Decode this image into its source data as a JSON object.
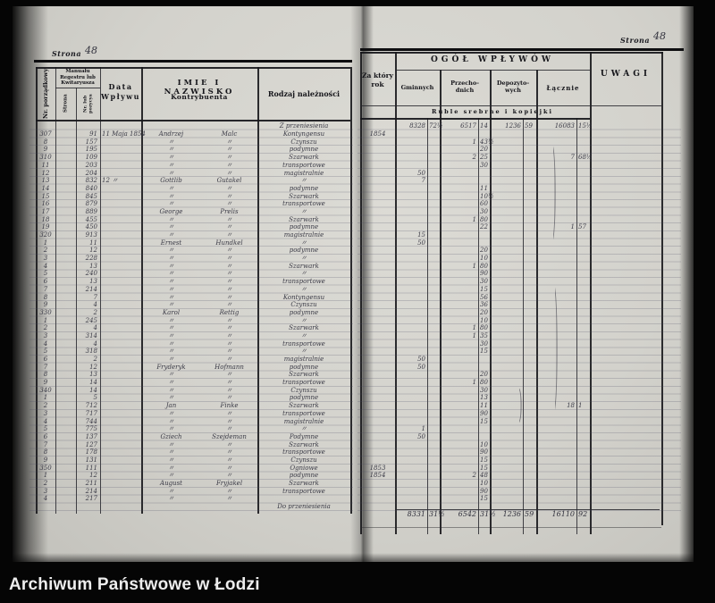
{
  "caption": "Archiwum Państwowe w Łodzi",
  "page_labels": {
    "left_word": "Strona",
    "left_number": "48",
    "right_word": "Strona",
    "right_number": "48"
  },
  "left_table": {
    "header": {
      "nr_porzadkowy": "Nr. porządkowy",
      "manual": "Manuału\nRegestru lub\nKwitaryusza",
      "strona": "Strona",
      "nr_pozycya": "Nr. lub pozycya",
      "data_wplywu": "Data\nWpływu",
      "imie": "IMIE I NAZWISKO",
      "kontrybuenta": "Kontrybuenta",
      "rodzaj": "Rodzaj należności"
    },
    "rows": [
      [
        "",
        "",
        "",
        "",
        "",
        "",
        "Z przeniesienia"
      ],
      [
        "307",
        "",
        "91",
        "11 Maja 1854",
        "Andrzej",
        "Malc",
        "Kontyngensu"
      ],
      [
        "8",
        "",
        "157",
        "",
        "〃",
        "〃",
        "Czynszu"
      ],
      [
        "9",
        "",
        "195",
        "",
        "〃",
        "〃",
        "podymne"
      ],
      [
        "310",
        "",
        "109",
        "",
        "〃",
        "〃",
        "Szarwark"
      ],
      [
        "11",
        "",
        "203",
        "",
        "〃",
        "〃",
        "transportowe"
      ],
      [
        "12",
        "",
        "204",
        "",
        "〃",
        "〃",
        "magistralnie"
      ],
      [
        "13",
        "",
        "832",
        "12 〃",
        "Gottlib",
        "Gutakel",
        "〃"
      ],
      [
        "14",
        "",
        "840",
        "",
        "〃",
        "〃",
        "podymne"
      ],
      [
        "15",
        "",
        "845",
        "",
        "〃",
        "〃",
        "Szarwark"
      ],
      [
        "16",
        "",
        "879",
        "",
        "〃",
        "〃",
        "transportowe"
      ],
      [
        "17",
        "",
        "889",
        "",
        "George",
        "Prelis",
        "〃"
      ],
      [
        "18",
        "",
        "455",
        "",
        "〃",
        "〃",
        "Szarwark"
      ],
      [
        "19",
        "",
        "450",
        "",
        "〃",
        "〃",
        "podymne"
      ],
      [
        "320",
        "",
        "913",
        "",
        "〃",
        "〃",
        "magistralnie"
      ],
      [
        "1",
        "",
        "11",
        "",
        "Ernest",
        "Hundkel",
        "〃"
      ],
      [
        "2",
        "",
        "12",
        "",
        "〃",
        "〃",
        "podymne"
      ],
      [
        "3",
        "",
        "228",
        "",
        "〃",
        "〃",
        "〃"
      ],
      [
        "4",
        "",
        "13",
        "",
        "〃",
        "〃",
        "Szarwark"
      ],
      [
        "5",
        "",
        "240",
        "",
        "〃",
        "〃",
        "〃"
      ],
      [
        "6",
        "",
        "13",
        "",
        "〃",
        "〃",
        "transportowe"
      ],
      [
        "7",
        "",
        "214",
        "",
        "〃",
        "〃",
        "〃"
      ],
      [
        "8",
        "",
        "7",
        "",
        "〃",
        "〃",
        "Kontyngensu"
      ],
      [
        "9",
        "",
        "4",
        "",
        "〃",
        "〃",
        "Czynszu"
      ],
      [
        "330",
        "",
        "2",
        "",
        "Karol",
        "Rettig",
        "podymne"
      ],
      [
        "1",
        "",
        "245",
        "",
        "〃",
        "〃",
        "〃"
      ],
      [
        "2",
        "",
        "4",
        "",
        "〃",
        "〃",
        "Szarwark"
      ],
      [
        "3",
        "",
        "314",
        "",
        "〃",
        "〃",
        "〃"
      ],
      [
        "4",
        "",
        "4",
        "",
        "〃",
        "〃",
        "transportowe"
      ],
      [
        "5",
        "",
        "318",
        "",
        "〃",
        "〃",
        "〃"
      ],
      [
        "6",
        "",
        "2",
        "",
        "〃",
        "〃",
        "magistralnie"
      ],
      [
        "7",
        "",
        "12",
        "",
        "Fryderyk",
        "Hofmann",
        "podymne"
      ],
      [
        "8",
        "",
        "13",
        "",
        "〃",
        "〃",
        "Szarwark"
      ],
      [
        "9",
        "",
        "14",
        "",
        "〃",
        "〃",
        "transportowe"
      ],
      [
        "340",
        "",
        "14",
        "",
        "〃",
        "〃",
        "Czynszu"
      ],
      [
        "1",
        "",
        "5",
        "",
        "〃",
        "〃",
        "podymne"
      ],
      [
        "2",
        "",
        "712",
        "",
        "Jan",
        "Finke",
        "Szarwark"
      ],
      [
        "3",
        "",
        "717",
        "",
        "〃",
        "〃",
        "transportowe"
      ],
      [
        "4",
        "",
        "744",
        "",
        "〃",
        "〃",
        "magistralnie"
      ],
      [
        "5",
        "",
        "775",
        "",
        "〃",
        "〃",
        "〃"
      ],
      [
        "6",
        "",
        "137",
        "",
        "Gziech",
        "Szejdeman",
        "Podymne"
      ],
      [
        "7",
        "",
        "127",
        "",
        "〃",
        "〃",
        "Szarwark"
      ],
      [
        "8",
        "",
        "178",
        "",
        "〃",
        "〃",
        "transportowe"
      ],
      [
        "9",
        "",
        "131",
        "",
        "〃",
        "〃",
        "Czynszu"
      ],
      [
        "350",
        "",
        "111",
        "",
        "〃",
        "〃",
        "Ogniowe"
      ],
      [
        "1",
        "",
        "12",
        "",
        "〃",
        "〃",
        "podymne"
      ],
      [
        "2",
        "",
        "211",
        "",
        "August",
        "Fryjakel",
        "Szarwark"
      ],
      [
        "3",
        "",
        "214",
        "",
        "〃",
        "〃",
        "transportowe"
      ],
      [
        "4",
        "",
        "217",
        "",
        "〃",
        "〃",
        ""
      ],
      [
        "",
        "",
        "",
        "",
        "",
        "",
        "Do przeniesienia"
      ]
    ]
  },
  "right_table": {
    "header": {
      "za_ktory_rok": "Za który\nrok",
      "ogol": "OGÓŁ WPŁYWÓW",
      "gminnych": "Gminnych",
      "przechodnich": "Przecho-\ndnich",
      "depozytowych": "Depozyto-\nwych",
      "lacznie": "Łącznie",
      "uwagi": "UWAGI",
      "ruble": "Ruble srebrne i kopiejki"
    },
    "rows": [
      [
        "",
        "8328",
        "72½",
        "6517",
        "14",
        "1236",
        "59",
        "16083",
        "15½",
        ""
      ],
      [
        "1854",
        "",
        "",
        "",
        "",
        "",
        "",
        "",
        "",
        ""
      ],
      [
        "",
        "",
        "",
        "1",
        "43½",
        "",
        "",
        "",
        "",
        ""
      ],
      [
        "",
        "",
        "",
        "",
        "20",
        "",
        "",
        "",
        "",
        ""
      ],
      [
        "",
        "",
        "",
        "2",
        "25",
        "",
        "",
        "7",
        "68½",
        ""
      ],
      [
        "",
        "",
        "",
        "",
        "30",
        "",
        "",
        "",
        "",
        ""
      ],
      [
        "",
        "50",
        "",
        "",
        "",
        "",
        "",
        "",
        "",
        ""
      ],
      [
        "",
        "7",
        "",
        "",
        "",
        "",
        "",
        "",
        "",
        ""
      ],
      [
        "",
        "",
        "",
        "",
        "11",
        "",
        "",
        "",
        "",
        ""
      ],
      [
        "",
        "",
        "",
        "",
        "10½",
        "",
        "",
        "",
        "",
        ""
      ],
      [
        "",
        "",
        "",
        "",
        "60",
        "",
        "",
        "",
        "",
        ""
      ],
      [
        "",
        "",
        "",
        "",
        "30",
        "",
        "",
        "",
        "",
        ""
      ],
      [
        "",
        "",
        "",
        "1",
        "80",
        "",
        "",
        "",
        "",
        ""
      ],
      [
        "",
        "",
        "",
        "",
        "22",
        "",
        "",
        "1",
        "57",
        ""
      ],
      [
        "",
        "15",
        "",
        "",
        "",
        "",
        "",
        "",
        "",
        ""
      ],
      [
        "",
        "50",
        "",
        "",
        "",
        "",
        "",
        "",
        "",
        ""
      ],
      [
        "",
        "",
        "",
        "",
        "20",
        "",
        "",
        "",
        "",
        ""
      ],
      [
        "",
        "",
        "",
        "",
        "10",
        "",
        "",
        "",
        "",
        ""
      ],
      [
        "",
        "",
        "",
        "1",
        "80",
        "",
        "",
        "",
        "",
        ""
      ],
      [
        "",
        "",
        "",
        "",
        "90",
        "",
        "",
        "",
        "",
        ""
      ],
      [
        "",
        "",
        "",
        "",
        "30",
        "",
        "",
        "",
        "",
        ""
      ],
      [
        "",
        "",
        "",
        "",
        "15",
        "",
        "",
        "",
        "",
        ""
      ],
      [
        "",
        "",
        "",
        "",
        "56",
        "",
        "",
        "",
        "",
        ""
      ],
      [
        "",
        "",
        "",
        "",
        "36",
        "",
        "",
        "",
        "",
        ""
      ],
      [
        "",
        "",
        "",
        "",
        "20",
        "",
        "",
        "",
        "",
        ""
      ],
      [
        "",
        "",
        "",
        "",
        "10",
        "",
        "",
        "",
        "",
        ""
      ],
      [
        "",
        "",
        "",
        "1",
        "80",
        "",
        "",
        "",
        "",
        ""
      ],
      [
        "",
        "",
        "",
        "1",
        "35",
        "",
        "",
        "",
        "",
        ""
      ],
      [
        "",
        "",
        "",
        "",
        "30",
        "",
        "",
        "",
        "",
        ""
      ],
      [
        "",
        "",
        "",
        "",
        "15",
        "",
        "",
        "",
        "",
        ""
      ],
      [
        "",
        "50",
        "",
        "",
        "",
        "",
        "",
        "",
        "",
        ""
      ],
      [
        "",
        "50",
        "",
        "",
        "",
        "",
        "",
        "",
        "",
        ""
      ],
      [
        "",
        "",
        "",
        "",
        "20",
        "",
        "",
        "",
        "",
        ""
      ],
      [
        "",
        "",
        "",
        "1",
        "80",
        "",
        "",
        "",
        "",
        ""
      ],
      [
        "",
        "",
        "",
        "",
        "30",
        "",
        "",
        "",
        "",
        ""
      ],
      [
        "",
        "",
        "",
        "",
        "13",
        "",
        "",
        "",
        "",
        ""
      ],
      [
        "",
        "",
        "",
        "",
        "11",
        "",
        "",
        "18",
        "1",
        ""
      ],
      [
        "",
        "",
        "",
        "",
        "90",
        "",
        "",
        "",
        "",
        ""
      ],
      [
        "",
        "",
        "",
        "",
        "15",
        "",
        "",
        "",
        "",
        ""
      ],
      [
        "",
        "1",
        "",
        "",
        "",
        "",
        "",
        "",
        "",
        ""
      ],
      [
        "",
        "50",
        "",
        "",
        "",
        "",
        "",
        "",
        "",
        ""
      ],
      [
        "",
        "",
        "",
        "",
        "10",
        "",
        "",
        "",
        "",
        ""
      ],
      [
        "",
        "",
        "",
        "",
        "90",
        "",
        "",
        "",
        "",
        ""
      ],
      [
        "",
        "",
        "",
        "",
        "15",
        "",
        "",
        "",
        "",
        ""
      ],
      [
        "1853",
        "",
        "",
        "",
        "15",
        "",
        "",
        "",
        "",
        ""
      ],
      [
        "1854",
        "",
        "",
        "2",
        "48",
        "",
        "",
        "",
        "",
        ""
      ],
      [
        "",
        "",
        "",
        "",
        "10",
        "",
        "",
        "",
        "",
        ""
      ],
      [
        "",
        "",
        "",
        "",
        "90",
        "",
        "",
        "",
        "",
        ""
      ],
      [
        "",
        "",
        "",
        "",
        "15",
        "",
        "",
        "",
        "",
        ""
      ],
      [
        "",
        "",
        "",
        "",
        "",
        "",
        "",
        "",
        "",
        ""
      ]
    ],
    "totals": [
      "",
      "8331",
      "31½",
      "6542",
      "31½",
      "1236",
      "59",
      "16110",
      "92",
      ""
    ]
  }
}
